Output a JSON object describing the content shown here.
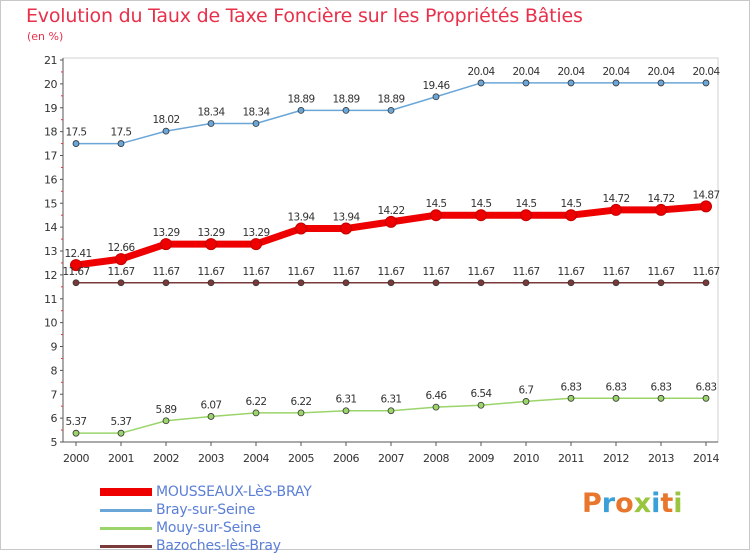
{
  "header": {
    "title": "Evolution du Taux de Taxe Foncière sur les Propriétés Bâties",
    "unit": "(en %)"
  },
  "logo": {
    "text": "Proxiti",
    "colors": [
      "#e8762d",
      "#3aa0d8",
      "#e8762d",
      "#9ac53e",
      "#3aa0d8",
      "#e8762d",
      "#9ac53e"
    ]
  },
  "chart_data": {
    "type": "line",
    "x": [
      "2000",
      "2001",
      "2002",
      "2003",
      "2004",
      "2005",
      "2006",
      "2007",
      "2008",
      "2009",
      "2010",
      "2011",
      "2012",
      "2013",
      "2014"
    ],
    "ylim": [
      5,
      21
    ],
    "yticks": [
      5,
      6,
      7,
      8,
      9,
      10,
      11,
      12,
      13,
      14,
      15,
      16,
      17,
      18,
      19,
      20,
      21
    ],
    "grid": false,
    "legend": "bottom-left",
    "series": [
      {
        "name": "MOUSSEAUX-LèS-BRAY",
        "color": "#ee0000",
        "values": [
          12.41,
          12.66,
          13.29,
          13.29,
          13.29,
          13.94,
          13.94,
          14.22,
          14.5,
          14.5,
          14.5,
          14.5,
          14.72,
          14.72,
          14.87
        ],
        "labels": [
          "12.41",
          "12.66",
          "13.29",
          "13.29",
          "13.29",
          "13.94",
          "13.94",
          "14.22",
          "14.5",
          "14.5",
          "14.5",
          "14.5",
          "14.72",
          "14.72",
          "14.87"
        ]
      },
      {
        "name": "Bray-sur-Seine",
        "color": "#6aa6d8",
        "values": [
          17.5,
          17.5,
          18.02,
          18.34,
          18.34,
          18.89,
          18.89,
          18.89,
          19.46,
          20.04,
          20.04,
          20.04,
          20.04,
          20.04,
          20.04
        ],
        "labels": [
          "17.5",
          "17.5",
          "18.02",
          "18.34",
          "18.34",
          "18.89",
          "18.89",
          "18.89",
          "19.46",
          "20.04",
          "20.04",
          "20.04",
          "20.04",
          "20.04",
          "20.04"
        ]
      },
      {
        "name": "Mouy-sur-Seine",
        "color": "#9ad46a",
        "values": [
          5.37,
          5.37,
          5.89,
          6.07,
          6.22,
          6.22,
          6.31,
          6.31,
          6.46,
          6.54,
          6.7,
          6.83,
          6.83,
          6.83,
          6.83
        ],
        "labels": [
          "5.37",
          "5.37",
          "5.89",
          "6.07",
          "6.22",
          "6.22",
          "6.31",
          "6.31",
          "6.46",
          "6.54",
          "6.7",
          "6.83",
          "6.83",
          "6.83",
          "6.83"
        ]
      },
      {
        "name": "Bazoches-lès-Bray",
        "color": "#7a3a3a",
        "values": [
          11.67,
          11.67,
          11.67,
          11.67,
          11.67,
          11.67,
          11.67,
          11.67,
          11.67,
          11.67,
          11.67,
          11.67,
          11.67,
          11.67,
          11.67
        ],
        "labels": [
          "11.67",
          "11.67",
          "11.67",
          "11.67",
          "11.67",
          "11.67",
          "11.67",
          "11.67",
          "11.67",
          "11.67",
          "11.67",
          "11.67",
          "11.67",
          "11.67",
          "11.67"
        ]
      }
    ]
  }
}
